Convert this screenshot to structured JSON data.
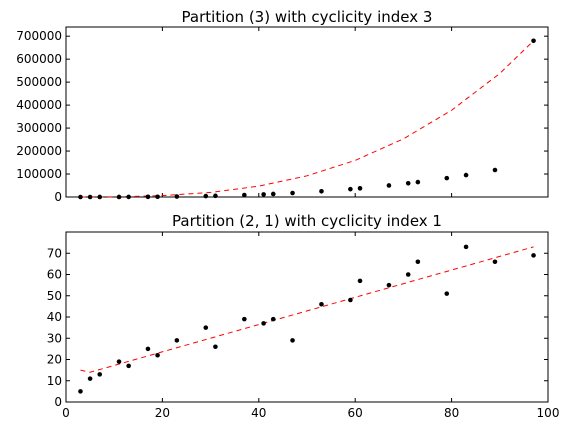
{
  "chart_data": [
    {
      "type": "scatter",
      "title": "Partition (3) with cyclicity index 3",
      "xlabel": "",
      "ylabel": "",
      "xlim": [
        0,
        100
      ],
      "ylim": [
        0,
        740000
      ],
      "x_ticks": [
        0,
        20,
        40,
        60,
        80,
        100
      ],
      "x_tick_labels_shown": false,
      "y_ticks": [
        0,
        100000,
        200000,
        300000,
        400000,
        500000,
        600000,
        700000
      ],
      "y_tick_labels": [
        "0",
        "100000",
        "200000",
        "300000",
        "400000",
        "500000",
        "600000",
        "700000"
      ],
      "grid": false,
      "legend": "none",
      "series": [
        {
          "kind": "points",
          "color": "#000000",
          "x": [
            3,
            5,
            7,
            11,
            13,
            17,
            19,
            23,
            29,
            31,
            37,
            41,
            43,
            47,
            53,
            59,
            61,
            67,
            71,
            73,
            79,
            83,
            89,
            97
          ],
          "y": [
            4,
            21,
            57,
            220,
            366,
            819,
            1140,
            2024,
            4060,
            4960,
            8436,
            11480,
            13244,
            17296,
            24804,
            34220,
            37820,
            50116,
            59640,
            64824,
            82160,
            95284,
            117480,
            680000
          ]
        },
        {
          "kind": "fit-line",
          "color": "#ff0000",
          "dashed": true,
          "x": [
            3,
            10,
            20,
            30,
            40,
            50,
            60,
            70,
            80,
            90,
            97
          ],
          "y": [
            20,
            740,
            5900,
            19900,
            47200,
            92200,
            159300,
            253000,
            377600,
            537700,
            680000
          ]
        }
      ]
    },
    {
      "type": "scatter",
      "title": "Partition (2, 1) with cyclicity index 1",
      "xlabel": "",
      "ylabel": "",
      "xlim": [
        0,
        100
      ],
      "ylim": [
        0,
        80
      ],
      "x_ticks": [
        0,
        20,
        40,
        60,
        80,
        100
      ],
      "x_tick_labels": [
        "0",
        "20",
        "40",
        "60",
        "80",
        "100"
      ],
      "y_ticks": [
        0,
        10,
        20,
        30,
        40,
        50,
        60,
        70
      ],
      "y_tick_labels": [
        "0",
        "10",
        "20",
        "30",
        "40",
        "50",
        "60",
        "70"
      ],
      "grid": false,
      "legend": "none",
      "series": [
        {
          "kind": "points",
          "color": "#000000",
          "x": [
            3,
            5,
            7,
            11,
            13,
            17,
            19,
            23,
            29,
            31,
            37,
            41,
            43,
            47,
            53,
            59,
            61,
            67,
            71,
            73,
            79,
            83,
            89,
            97
          ],
          "y": [
            5,
            11,
            13,
            19,
            17,
            25,
            22,
            29,
            35,
            26,
            39,
            37,
            39,
            29,
            46,
            48,
            57,
            55,
            60,
            66,
            51,
            73,
            66,
            69
          ]
        },
        {
          "kind": "fit-line",
          "color": "#ff0000",
          "dashed": true,
          "x": [
            3,
            5,
            97
          ],
          "y": [
            15,
            14,
            73
          ]
        }
      ]
    }
  ]
}
